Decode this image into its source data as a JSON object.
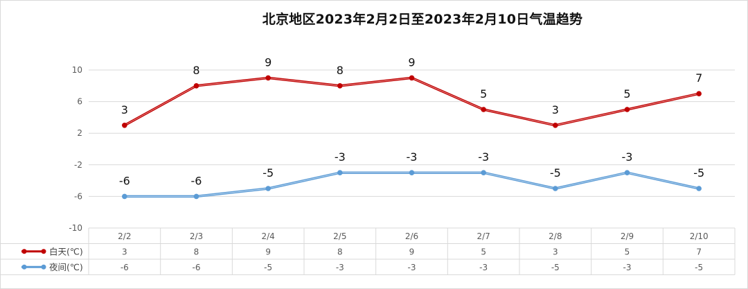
{
  "chart_data": {
    "type": "line",
    "title": "北京地区2023年2月2日至2023年2月10日气温趋势",
    "categories": [
      "2/2",
      "2/3",
      "2/4",
      "2/5",
      "2/6",
      "2/7",
      "2/8",
      "2/9",
      "2/10"
    ],
    "series": [
      {
        "name": "白天(℃)",
        "values": [
          3,
          8,
          9,
          8,
          9,
          5,
          3,
          5,
          7
        ],
        "color": "#c00000"
      },
      {
        "name": "夜间(℃)",
        "values": [
          -6,
          -6,
          -5,
          -3,
          -3,
          -3,
          -5,
          -3,
          -5
        ],
        "color": "#5b9bd5"
      }
    ],
    "ylim": [
      -10,
      10
    ],
    "yticks": [
      "10",
      "6",
      "2",
      "-2",
      "-6",
      "-10"
    ],
    "grid": true,
    "legend": "data-table",
    "data_labels": true,
    "gridline_color": "#d9d9d9"
  }
}
